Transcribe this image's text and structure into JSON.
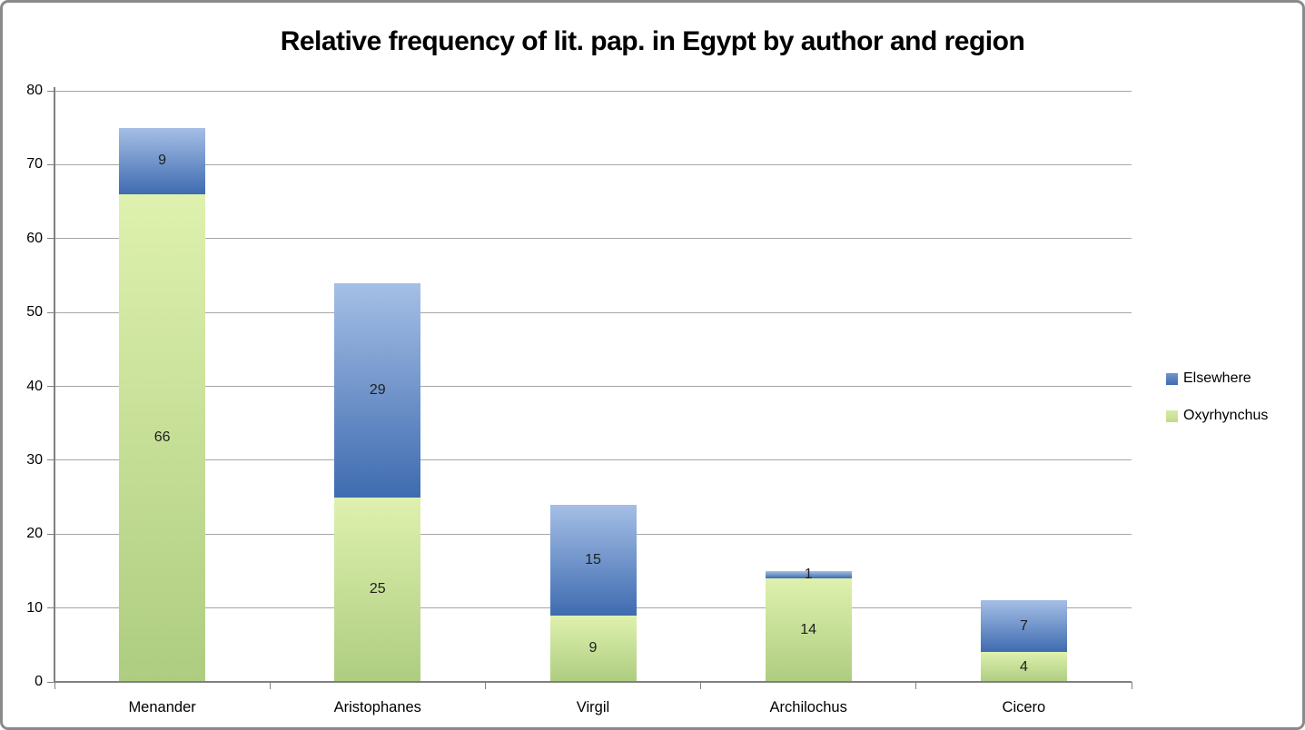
{
  "title": "Relative frequency of lit. pap. in Egypt by author and region",
  "chart_data": {
    "type": "bar",
    "stacked": true,
    "title": "Relative frequency of lit. pap. in Egypt by author and region",
    "categories": [
      "Menander",
      "Aristophanes",
      "Virgil",
      "Archilochus",
      "Cicero"
    ],
    "series": [
      {
        "name": "Oxyrhynchus",
        "values": [
          66,
          25,
          9,
          14,
          4
        ],
        "color_top": "#def1ae",
        "color_bottom": "#aecd80"
      },
      {
        "name": "Elsewhere",
        "values": [
          9,
          29,
          15,
          1,
          7
        ],
        "color_top": "#a5bfe6",
        "color_bottom": "#3e6bb0"
      }
    ],
    "totals": [
      75,
      54,
      24,
      15,
      11
    ],
    "xlabel": "",
    "ylabel": "",
    "ylim": [
      0,
      80
    ],
    "yticks": [
      0,
      10,
      20,
      30,
      40,
      50,
      60,
      70,
      80
    ],
    "grid": true,
    "data_labels": true,
    "legend_position": "right",
    "legend_items": [
      {
        "label": "Elsewhere",
        "swatch_top": "#6f97cd",
        "swatch_bottom": "#3f6cb1"
      },
      {
        "label": "Oxyrhynchus",
        "swatch_top": "#d7eca7",
        "swatch_bottom": "#c0da8e"
      }
    ],
    "colors": {
      "gridline": "#a6a6a6",
      "axis": "#808080",
      "data_label_text": "#1f1f1f"
    }
  }
}
